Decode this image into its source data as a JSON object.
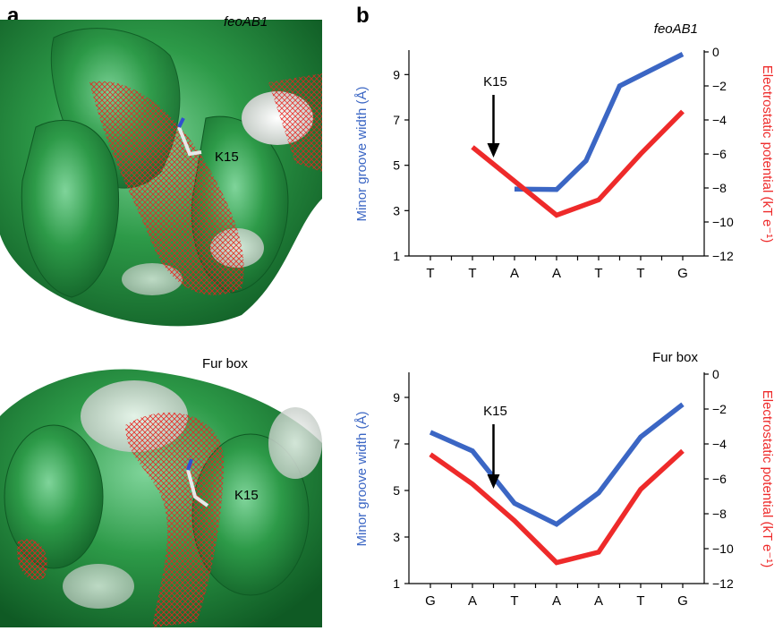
{
  "panels": {
    "a": {
      "letter": "a",
      "top": {
        "caption": "feoAB1",
        "residue_label": "K15"
      },
      "bottom": {
        "caption": "Fur box",
        "residue_label": "K15"
      }
    },
    "b": {
      "letter": "b"
    }
  },
  "colors": {
    "minor_groove": "#3b66c4",
    "electrostatic": "#ee2a2a",
    "surface_green": "#2d9a48",
    "surface_white": "#f2f2f2",
    "mesh_red": "#e8231f"
  },
  "chart_data": [
    {
      "type": "line",
      "title": "feoAB1",
      "categories": [
        "T",
        "T",
        "A",
        "A",
        "T",
        "T",
        "G"
      ],
      "y_left": {
        "label": "Minor groove width (Å)",
        "range": [
          1,
          10
        ],
        "ticks": [
          "1",
          "3",
          "5",
          "7",
          "9"
        ]
      },
      "y_right": {
        "label": "Electrostatic potential (kT e⁻¹)",
        "range": [
          -12,
          0
        ],
        "ticks": [
          "0",
          "−2",
          "−4",
          "−6",
          "−8",
          "−10",
          "−12"
        ]
      },
      "series": [
        {
          "axis": "left",
          "color": "#3b66c4",
          "points": [
            [
              2.0,
              3.95
            ],
            [
              3.0,
              3.93
            ],
            [
              3.7,
              5.2
            ],
            [
              4.5,
              8.5
            ],
            [
              6.0,
              9.9
            ]
          ]
        },
        {
          "axis": "right",
          "color": "#ee2a2a",
          "points": [
            [
              1.0,
              -5.6
            ],
            [
              3.0,
              -9.6
            ],
            [
              4.0,
              -8.7
            ],
            [
              5.0,
              -6.0
            ],
            [
              6.0,
              -3.5
            ]
          ]
        }
      ],
      "annotation": {
        "label": "K15",
        "x": 1.5
      }
    },
    {
      "type": "line",
      "title": "Fur box",
      "categories": [
        "G",
        "A",
        "T",
        "A",
        "A",
        "T",
        "G"
      ],
      "y_left": {
        "label": "Minor groove width (Å)",
        "range": [
          1,
          10
        ],
        "ticks": [
          "1",
          "3",
          "5",
          "7",
          "9"
        ]
      },
      "y_right": {
        "label": "Electrostatic potential (kT e⁻¹)",
        "range": [
          -12,
          0
        ],
        "ticks": [
          "0",
          "−2",
          "−4",
          "−6",
          "−8",
          "−10",
          "−12"
        ]
      },
      "series": [
        {
          "axis": "left",
          "color": "#3b66c4",
          "points": [
            [
              0.0,
              7.5
            ],
            [
              1.0,
              6.7
            ],
            [
              2.0,
              4.45
            ],
            [
              3.0,
              3.55
            ],
            [
              4.0,
              4.9
            ],
            [
              5.0,
              7.3
            ],
            [
              6.0,
              8.7
            ]
          ]
        },
        {
          "axis": "right",
          "color": "#ee2a2a",
          "points": [
            [
              0.0,
              -4.6
            ],
            [
              1.0,
              -6.3
            ],
            [
              2.0,
              -8.4
            ],
            [
              3.0,
              -10.8
            ],
            [
              4.0,
              -10.2
            ],
            [
              5.0,
              -6.6
            ],
            [
              6.0,
              -4.4
            ]
          ]
        }
      ],
      "annotation": {
        "label": "K15",
        "x": 1.5
      }
    }
  ]
}
